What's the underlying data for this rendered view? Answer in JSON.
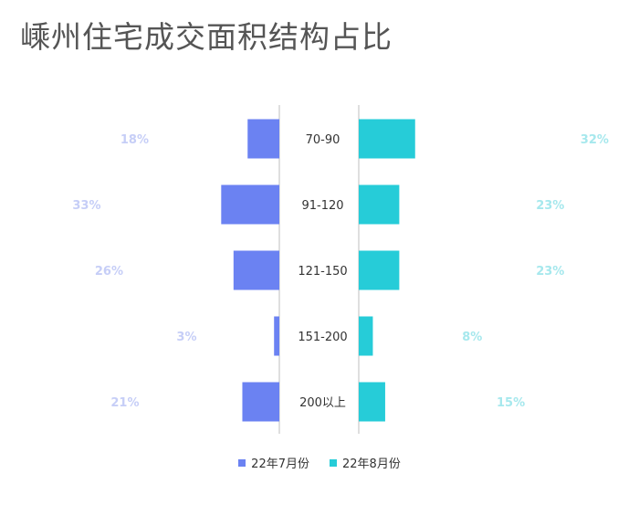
{
  "title": "嵊州住宅成交面积结构占比",
  "chart_data": {
    "type": "bar",
    "categories": [
      "70-90",
      "91-120",
      "121-150",
      "151-200",
      "200以上"
    ],
    "series": [
      {
        "name": "22年7月份",
        "values": [
          18,
          33,
          26,
          3,
          21
        ],
        "labels": [
          "18%",
          "33%",
          "26%",
          "3%",
          "21%"
        ],
        "color": "#6b82f2"
      },
      {
        "name": "22年8月份",
        "values": [
          32,
          23,
          23,
          8,
          15
        ],
        "labels": [
          "32%",
          "23%",
          "23%",
          "8%",
          "15%"
        ],
        "color": "#26ccd8"
      }
    ],
    "legend": "bottom"
  }
}
